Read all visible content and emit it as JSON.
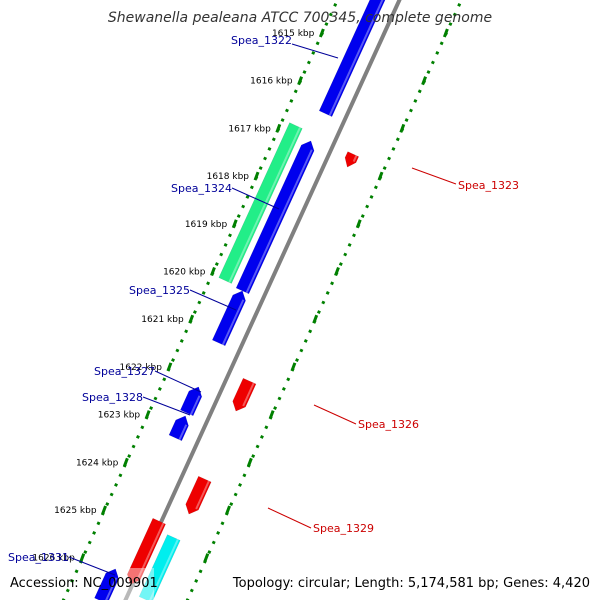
{
  "title": "Shewanella pealeana ATCC 700345, complete genome",
  "footer": {
    "accession": "Accession: NC_009901",
    "summary": "Topology: circular; Length: 5,174,581 bp; Genes: 4,420"
  },
  "colors": {
    "forward_cds": "#0000ee",
    "reverse_cds": "#ee0000",
    "rna_green": "#22ee88",
    "rna_cyan": "#00eeee",
    "backbone": "#808080",
    "tick_marks": "#008000",
    "label_forward": "#000099",
    "label_reverse": "#cc0000"
  },
  "kbp_ticks": [
    {
      "label": "1615 kbp",
      "kb": 1615
    },
    {
      "label": "1616 kbp",
      "kb": 1616
    },
    {
      "label": "1617 kbp",
      "kb": 1617
    },
    {
      "label": "1618 kbp",
      "kb": 1618
    },
    {
      "label": "1619 kbp",
      "kb": 1619
    },
    {
      "label": "1620 kbp",
      "kb": 1620
    },
    {
      "label": "1621 kbp",
      "kb": 1621
    },
    {
      "label": "1622 kbp",
      "kb": 1622
    },
    {
      "label": "1623 kbp",
      "kb": 1623
    },
    {
      "label": "1624 kbp",
      "kb": 1624
    },
    {
      "label": "1625 kbp",
      "kb": 1625
    },
    {
      "label": "1626 kbp",
      "kb": 1626
    }
  ],
  "genes": [
    {
      "id": "Spea_1322",
      "label": "Spea_1322",
      "strand": "forward",
      "type": "cds"
    },
    {
      "id": "Spea_1323",
      "label": "Spea_1323",
      "strand": "reverse",
      "type": "cds"
    },
    {
      "id": "Spea_1324",
      "label": "Spea_1324",
      "strand": "forward",
      "type": "rna"
    },
    {
      "id": "Spea_1325",
      "label": "Spea_1325",
      "strand": "forward",
      "type": "cds"
    },
    {
      "id": "Spea_1326",
      "label": "Spea_1326",
      "strand": "reverse",
      "type": "cds"
    },
    {
      "id": "Spea_1327",
      "label": "Spea_1327",
      "strand": "forward",
      "type": "cds"
    },
    {
      "id": "Spea_1328",
      "label": "Spea_1328",
      "strand": "forward",
      "type": "cds"
    },
    {
      "id": "Spea_1329",
      "label": "Spea_1329",
      "strand": "reverse",
      "type": "cds"
    },
    {
      "id": "Spea_1331",
      "label": "Spea_1331",
      "strand": "forward",
      "type": "cds"
    }
  ]
}
